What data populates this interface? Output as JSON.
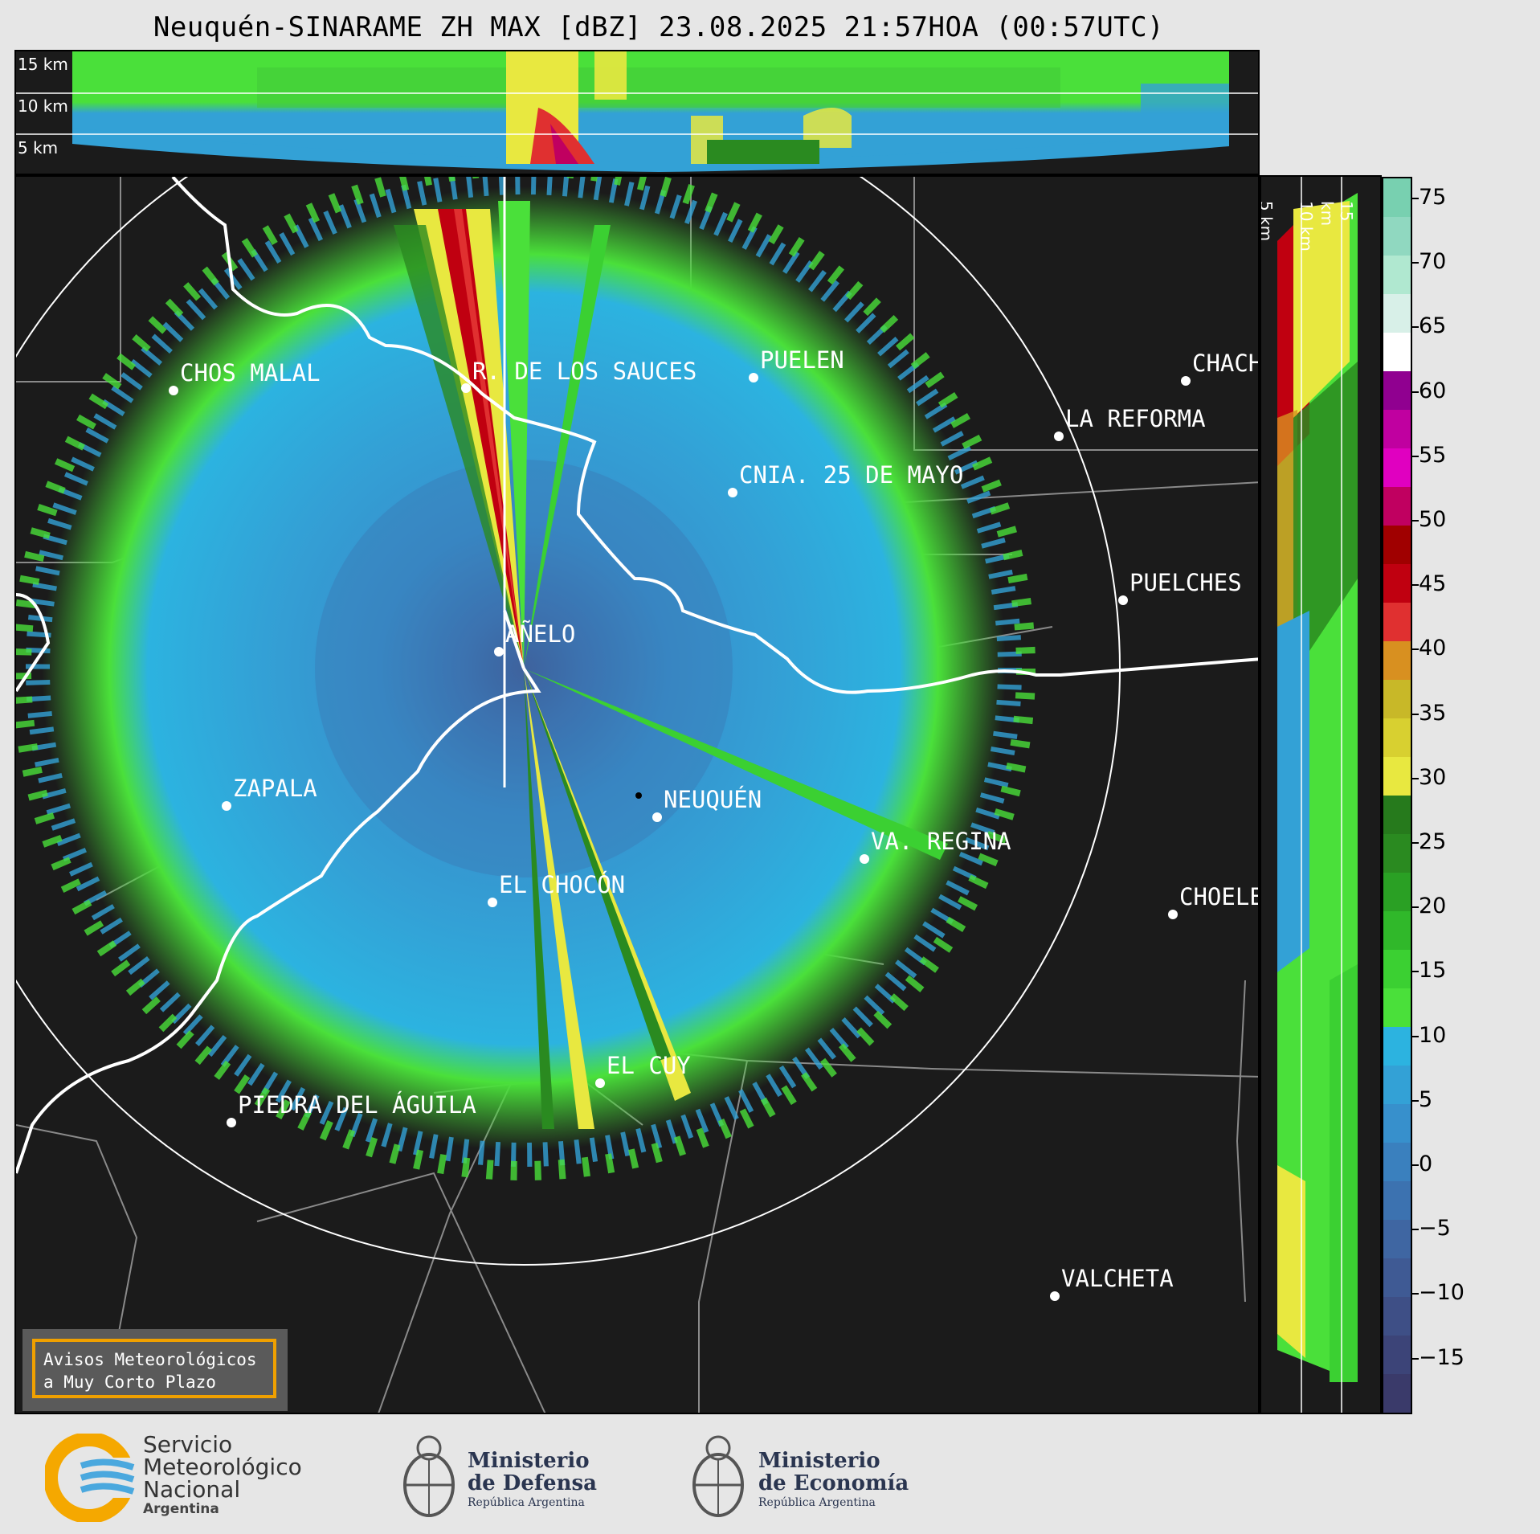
{
  "title": "Neuquén-SINARAME ZH MAX [dBZ] 23.08.2025 21:57HOA (00:57UTC)",
  "top_panel": {
    "km_labels": [
      "15 km",
      "10 km",
      "5 km"
    ]
  },
  "side_panel": {
    "km_labels": [
      "5 km",
      "10 km",
      "15 km"
    ]
  },
  "colorbar": {
    "unit": "dBZ",
    "ticks": [
      "75",
      "70",
      "65",
      "60",
      "55",
      "50",
      "45",
      "40",
      "35",
      "30",
      "25",
      "20",
      "15",
      "10",
      "5",
      "0",
      "−5",
      "−10",
      "−15"
    ],
    "colors": [
      "#3a3a6a",
      "#3c4478",
      "#3e4f86",
      "#3f5a94",
      "#3f66a2",
      "#3c72b0",
      "#3a80be",
      "#3790cc",
      "#33a1d6",
      "#2cb3e0",
      "#4ae03a",
      "#3bd032",
      "#30b82a",
      "#2aa024",
      "#2a8a20",
      "#267a1c",
      "#e8e840",
      "#d8d030",
      "#c8b828",
      "#d89020",
      "#e03030",
      "#c00010",
      "#a00000",
      "#c00060",
      "#e000c0",
      "#c000a0",
      "#900090",
      "#ffffff",
      "#d8f0e8",
      "#b0e8d0",
      "#90d8c0",
      "#78d0b0"
    ]
  },
  "map": {
    "radar_site": "NEUQUÉN",
    "places": [
      {
        "name": "CHOS MALAL"
      },
      {
        "name": "R. DE LOS SAUCES"
      },
      {
        "name": "PUELEN"
      },
      {
        "name": "CHACH"
      },
      {
        "name": "LA REFORMA"
      },
      {
        "name": "CNIA. 25 DE MAYO"
      },
      {
        "name": "PUELCHES"
      },
      {
        "name": "AÑELO"
      },
      {
        "name": "ZAPALA"
      },
      {
        "name": "NEUQUÉN"
      },
      {
        "name": "VA. REGINA"
      },
      {
        "name": "EL CHOCÓN"
      },
      {
        "name": "CHOELE"
      },
      {
        "name": "EL CUY"
      },
      {
        "name": "PIEDRA DEL ÁGUILA"
      },
      {
        "name": "VALCHETA"
      }
    ],
    "avisos_box": {
      "line1": "Avisos Meteorológicos",
      "line2": "a Muy Corto Plazo"
    }
  },
  "footer": {
    "smn": {
      "line1": "Servicio",
      "line2": "Meteorológico",
      "line3": "Nacional",
      "line4": "Argentina"
    },
    "defensa": {
      "line1": "Ministerio",
      "line2": "de Defensa",
      "line3": "República Argentina"
    },
    "economia": {
      "line1": "Ministerio",
      "line2": "de Economía",
      "line3": "República Argentina"
    }
  }
}
